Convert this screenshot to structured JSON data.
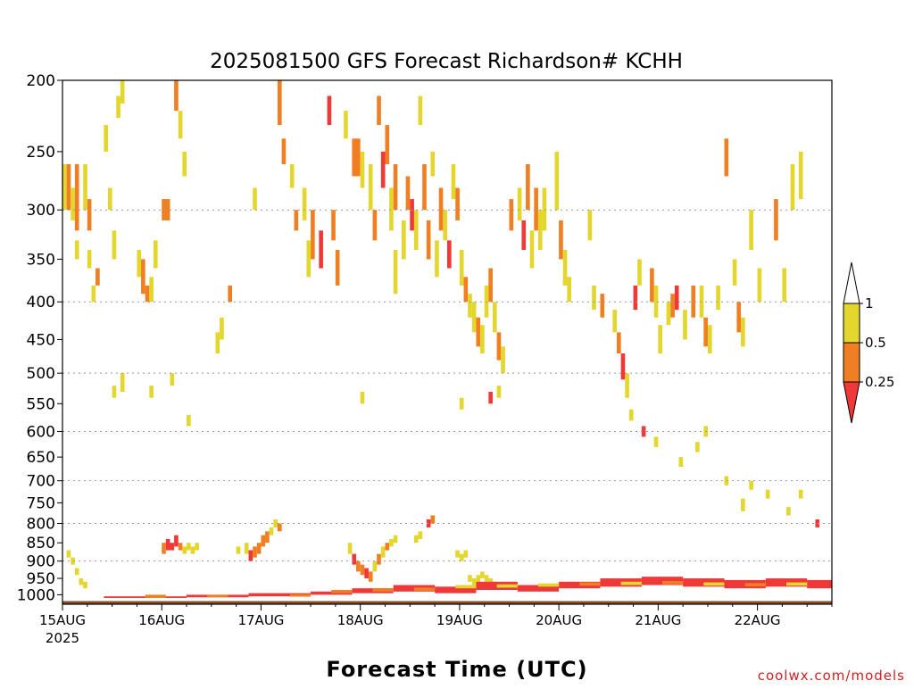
{
  "chart_data": {
    "type": "heatmap",
    "title": "2025081500 GFS Forecast Richardson# KCHH",
    "xlabel": "Forecast Time (UTC)",
    "ylabel": "",
    "credit": "coolwx.com/models",
    "x_ticks": [
      {
        "label": "15AUG",
        "sublabel": "2025",
        "hour": 0
      },
      {
        "label": "16AUG",
        "hour": 24
      },
      {
        "label": "17AUG",
        "hour": 48
      },
      {
        "label": "18AUG",
        "hour": 72
      },
      {
        "label": "19AUG",
        "hour": 96
      },
      {
        "label": "20AUG",
        "hour": 120
      },
      {
        "label": "21AUG",
        "hour": 144
      },
      {
        "label": "22AUG",
        "hour": 168
      }
    ],
    "xlim_hours": [
      0,
      186
    ],
    "y_ticks": [
      200,
      250,
      300,
      350,
      400,
      450,
      500,
      550,
      600,
      650,
      700,
      750,
      800,
      850,
      900,
      950,
      1000
    ],
    "y_gridlines": [
      300,
      400,
      500,
      600,
      700,
      800,
      900
    ],
    "ylim_hpa": [
      200,
      1030
    ],
    "y_scale": "log-pressure (inverted)",
    "grid": "dotted horizontal",
    "surface_pressure_hpa": 1020,
    "legend": {
      "placement": "right",
      "labels": [
        "1",
        "0.5",
        "0.25"
      ],
      "bins": [
        {
          "range": "> 1",
          "color": "#ffffff"
        },
        {
          "range": "0.5 - 1",
          "color": "#e3d62d"
        },
        {
          "range": "0.25 - 0.5",
          "color": "#ef7f22"
        },
        {
          "range": "< 0.25",
          "color": "#f03838"
        }
      ]
    },
    "colors": {
      "ri_0.5_1": "#e3d62d",
      "ri_0.25_0.5": "#ef7f22",
      "ri_lt_0.25": "#f03838",
      "ground": "#8b4a26"
    },
    "cells_note": "each cell: [hour_start, hour_end, p_top_hPa, p_bottom_hPa, bin] with bin 1 = 0.5-1, 2 = 0.25-0.5, 3 = <0.25",
    "cells": [
      [
        0,
        1,
        260,
        300,
        1
      ],
      [
        1,
        2,
        260,
        300,
        2
      ],
      [
        2,
        3,
        280,
        310,
        1
      ],
      [
        3,
        4,
        260,
        320,
        2
      ],
      [
        3,
        4,
        330,
        350,
        1
      ],
      [
        5,
        6,
        260,
        300,
        1
      ],
      [
        6,
        7,
        290,
        320,
        2
      ],
      [
        6,
        7,
        340,
        360,
        1
      ],
      [
        7,
        8,
        380,
        400,
        1
      ],
      [
        8,
        9,
        360,
        380,
        2
      ],
      [
        10,
        11,
        230,
        250,
        1
      ],
      [
        11,
        12,
        280,
        300,
        1
      ],
      [
        12,
        13,
        320,
        350,
        1
      ],
      [
        13,
        14,
        210,
        225,
        1
      ],
      [
        14,
        15,
        200,
        215,
        1
      ],
      [
        18,
        19,
        340,
        370,
        1
      ],
      [
        19,
        20,
        350,
        390,
        2
      ],
      [
        20,
        21,
        380,
        400,
        2
      ],
      [
        21,
        22,
        370,
        400,
        1
      ],
      [
        22,
        23,
        330,
        360,
        1
      ],
      [
        24,
        26,
        290,
        310,
        2
      ],
      [
        27,
        28,
        200,
        220,
        2
      ],
      [
        28,
        29,
        220,
        240,
        1
      ],
      [
        29,
        30,
        250,
        270,
        1
      ],
      [
        37,
        38,
        440,
        470,
        1
      ],
      [
        38,
        39,
        420,
        450,
        1
      ],
      [
        40,
        41,
        380,
        400,
        2
      ],
      [
        46,
        47,
        280,
        300,
        1
      ],
      [
        52,
        53,
        200,
        230,
        2
      ],
      [
        53,
        54,
        240,
        260,
        2
      ],
      [
        55,
        56,
        260,
        280,
        1
      ],
      [
        56,
        57,
        300,
        320,
        2
      ],
      [
        58,
        59,
        280,
        310,
        1
      ],
      [
        59,
        60,
        330,
        370,
        1
      ],
      [
        60,
        61,
        300,
        350,
        2
      ],
      [
        62,
        63,
        320,
        360,
        3
      ],
      [
        64,
        65,
        210,
        230,
        3
      ],
      [
        65,
        66,
        300,
        330,
        2
      ],
      [
        66,
        67,
        340,
        380,
        2
      ],
      [
        68,
        69,
        220,
        240,
        1
      ],
      [
        70,
        72,
        240,
        270,
        2
      ],
      [
        72,
        73,
        250,
        280,
        1
      ],
      [
        74,
        75,
        260,
        300,
        1
      ],
      [
        75,
        76,
        300,
        330,
        2
      ],
      [
        76,
        77,
        210,
        230,
        2
      ],
      [
        77,
        78,
        250,
        280,
        3
      ],
      [
        78,
        79,
        230,
        260,
        2
      ],
      [
        79,
        80,
        280,
        320,
        1
      ],
      [
        80,
        81,
        260,
        300,
        2
      ],
      [
        80,
        81,
        340,
        390,
        1
      ],
      [
        82,
        83,
        310,
        350,
        1
      ],
      [
        83,
        84,
        270,
        300,
        2
      ],
      [
        84,
        85,
        290,
        320,
        3
      ],
      [
        85,
        86,
        300,
        340,
        1
      ],
      [
        86,
        87,
        210,
        230,
        1
      ],
      [
        87,
        88,
        260,
        300,
        2
      ],
      [
        88,
        89,
        310,
        350,
        2
      ],
      [
        89,
        90,
        250,
        270,
        1
      ],
      [
        90,
        91,
        330,
        370,
        1
      ],
      [
        91,
        92,
        280,
        320,
        2
      ],
      [
        92,
        93,
        300,
        330,
        1
      ],
      [
        93,
        94,
        330,
        360,
        3
      ],
      [
        94,
        95,
        260,
        290,
        1
      ],
      [
        95,
        96,
        280,
        310,
        2
      ],
      [
        96,
        97,
        340,
        380,
        1
      ],
      [
        97,
        98,
        370,
        400,
        2
      ],
      [
        98,
        99,
        390,
        420,
        1
      ],
      [
        99,
        100,
        400,
        440,
        1
      ],
      [
        100,
        101,
        420,
        460,
        2
      ],
      [
        101,
        102,
        430,
        470,
        1
      ],
      [
        102,
        103,
        380,
        420,
        1
      ],
      [
        103,
        104,
        360,
        400,
        2
      ],
      [
        104,
        105,
        400,
        440,
        1
      ],
      [
        105,
        106,
        440,
        480,
        2
      ],
      [
        106,
        107,
        460,
        500,
        1
      ],
      [
        108,
        109,
        290,
        320,
        2
      ],
      [
        110,
        111,
        280,
        310,
        1
      ],
      [
        111,
        112,
        310,
        340,
        3
      ],
      [
        112,
        113,
        260,
        300,
        2
      ],
      [
        113,
        114,
        320,
        360,
        1
      ],
      [
        114,
        115,
        280,
        320,
        2
      ],
      [
        115,
        116,
        300,
        340,
        1
      ],
      [
        116,
        117,
        280,
        320,
        1
      ],
      [
        119,
        120,
        250,
        300,
        1
      ],
      [
        120,
        121,
        310,
        350,
        2
      ],
      [
        121,
        122,
        340,
        380,
        1
      ],
      [
        122,
        123,
        370,
        400,
        1
      ],
      [
        127,
        128,
        300,
        330,
        1
      ],
      [
        128,
        129,
        380,
        410,
        1
      ],
      [
        130,
        131,
        390,
        420,
        2
      ],
      [
        133,
        134,
        410,
        440,
        1
      ],
      [
        134,
        135,
        440,
        470,
        2
      ],
      [
        135,
        136,
        470,
        510,
        3
      ],
      [
        136,
        137,
        500,
        540,
        1
      ],
      [
        138,
        139,
        380,
        410,
        3
      ],
      [
        139,
        140,
        350,
        380,
        1
      ],
      [
        142,
        143,
        360,
        400,
        2
      ],
      [
        143,
        144,
        380,
        420,
        1
      ],
      [
        144,
        145,
        430,
        470,
        1
      ],
      [
        146,
        147,
        400,
        430,
        1
      ],
      [
        147,
        148,
        390,
        420,
        2
      ],
      [
        148,
        149,
        380,
        410,
        3
      ],
      [
        150,
        151,
        410,
        450,
        1
      ],
      [
        152,
        153,
        380,
        420,
        2
      ],
      [
        154,
        155,
        380,
        420,
        1
      ],
      [
        155,
        156,
        420,
        460,
        2
      ],
      [
        156,
        157,
        430,
        470,
        1
      ],
      [
        158,
        159,
        380,
        410,
        1
      ],
      [
        160,
        161,
        240,
        270,
        2
      ],
      [
        162,
        163,
        350,
        380,
        1
      ],
      [
        163,
        164,
        400,
        440,
        2
      ],
      [
        164,
        165,
        420,
        460,
        1
      ],
      [
        166,
        167,
        300,
        340,
        1
      ],
      [
        168,
        169,
        360,
        400,
        1
      ],
      [
        172,
        173,
        290,
        330,
        2
      ],
      [
        174,
        175,
        360,
        400,
        1
      ],
      [
        176,
        177,
        260,
        300,
        1
      ],
      [
        178,
        179,
        250,
        290,
        1
      ],
      [
        12,
        13,
        520,
        540,
        1
      ],
      [
        14,
        15,
        500,
        530,
        1
      ],
      [
        21,
        22,
        520,
        540,
        1
      ],
      [
        26,
        27,
        500,
        520,
        1
      ],
      [
        30,
        31,
        570,
        590,
        1
      ],
      [
        72,
        73,
        530,
        550,
        1
      ],
      [
        96,
        97,
        540,
        560,
        1
      ],
      [
        103,
        104,
        530,
        550,
        3
      ],
      [
        105,
        106,
        520,
        540,
        1
      ],
      [
        137,
        138,
        560,
        580,
        1
      ],
      [
        140,
        141,
        590,
        610,
        3
      ],
      [
        143,
        144,
        610,
        630,
        1
      ],
      [
        149,
        150,
        650,
        670,
        1
      ],
      [
        153,
        154,
        620,
        640,
        1
      ],
      [
        155,
        156,
        590,
        610,
        1
      ],
      [
        160,
        161,
        690,
        710,
        1
      ],
      [
        164,
        165,
        740,
        770,
        1
      ],
      [
        166,
        167,
        700,
        720,
        1
      ],
      [
        170,
        171,
        720,
        740,
        1
      ],
      [
        175,
        176,
        760,
        780,
        1
      ],
      [
        178,
        179,
        720,
        740,
        1
      ],
      [
        182,
        183,
        790,
        810,
        3
      ],
      [
        24,
        25,
        850,
        880,
        2
      ],
      [
        25,
        26,
        840,
        870,
        3
      ],
      [
        26,
        27,
        850,
        870,
        3
      ],
      [
        27,
        28,
        830,
        860,
        3
      ],
      [
        28,
        29,
        850,
        870,
        2
      ],
      [
        29,
        30,
        860,
        880,
        1
      ],
      [
        30,
        31,
        850,
        870,
        1
      ],
      [
        31,
        32,
        860,
        880,
        1
      ],
      [
        32,
        33,
        850,
        870,
        1
      ],
      [
        42,
        43,
        860,
        880,
        1
      ],
      [
        44,
        45,
        850,
        880,
        1
      ],
      [
        45,
        46,
        870,
        900,
        3
      ],
      [
        46,
        47,
        860,
        890,
        2
      ],
      [
        47,
        48,
        850,
        880,
        2
      ],
      [
        48,
        49,
        830,
        860,
        2
      ],
      [
        49,
        50,
        820,
        850,
        2
      ],
      [
        50,
        51,
        810,
        830,
        1
      ],
      [
        51,
        52,
        790,
        810,
        1
      ],
      [
        52,
        53,
        800,
        820,
        2
      ],
      [
        69,
        70,
        850,
        880,
        1
      ],
      [
        70,
        71,
        880,
        910,
        3
      ],
      [
        71,
        72,
        900,
        930,
        2
      ],
      [
        72,
        73,
        910,
        940,
        2
      ],
      [
        73,
        74,
        920,
        950,
        3
      ],
      [
        74,
        75,
        930,
        960,
        2
      ],
      [
        75,
        76,
        900,
        930,
        1
      ],
      [
        76,
        77,
        880,
        910,
        2
      ],
      [
        77,
        78,
        860,
        890,
        1
      ],
      [
        78,
        79,
        850,
        870,
        2
      ],
      [
        79,
        80,
        840,
        860,
        1
      ],
      [
        80,
        81,
        830,
        850,
        1
      ],
      [
        85,
        86,
        830,
        850,
        1
      ],
      [
        86,
        87,
        820,
        840,
        1
      ],
      [
        88,
        89,
        790,
        810,
        3
      ],
      [
        89,
        90,
        780,
        800,
        2
      ],
      [
        95,
        96,
        870,
        890,
        1
      ],
      [
        96,
        97,
        880,
        900,
        1
      ],
      [
        97,
        98,
        870,
        890,
        1
      ],
      [
        98,
        99,
        940,
        960,
        1
      ],
      [
        99,
        100,
        950,
        970,
        1
      ],
      [
        100,
        101,
        940,
        960,
        1
      ],
      [
        101,
        102,
        930,
        950,
        1
      ],
      [
        102,
        103,
        940,
        960,
        1
      ],
      [
        103,
        104,
        950,
        970,
        1
      ],
      [
        104,
        105,
        960,
        980,
        1
      ],
      [
        1,
        2,
        870,
        890,
        1
      ],
      [
        2,
        3,
        890,
        910,
        1
      ],
      [
        3,
        4,
        920,
        940,
        1
      ],
      [
        4,
        5,
        950,
        970,
        1
      ],
      [
        5,
        6,
        960,
        980,
        1
      ],
      [
        60,
        70,
        990,
        1000,
        3
      ],
      [
        70,
        80,
        980,
        995,
        3
      ],
      [
        80,
        90,
        970,
        990,
        3
      ],
      [
        90,
        100,
        975,
        995,
        3
      ],
      [
        100,
        110,
        960,
        985,
        3
      ],
      [
        110,
        120,
        970,
        990,
        3
      ],
      [
        120,
        130,
        960,
        980,
        3
      ],
      [
        130,
        140,
        950,
        975,
        3
      ],
      [
        140,
        150,
        945,
        970,
        3
      ],
      [
        150,
        160,
        950,
        975,
        3
      ],
      [
        160,
        170,
        955,
        980,
        3
      ],
      [
        170,
        180,
        950,
        975,
        3
      ],
      [
        180,
        186,
        955,
        980,
        3
      ],
      [
        10,
        30,
        1005,
        1010,
        3
      ],
      [
        30,
        45,
        1000,
        1008,
        3
      ],
      [
        45,
        60,
        995,
        1005,
        3
      ],
      [
        20,
        25,
        1000,
        1010,
        2
      ],
      [
        35,
        40,
        1000,
        1008,
        2
      ],
      [
        55,
        60,
        998,
        1006,
        2
      ],
      [
        65,
        70,
        985,
        995,
        2
      ],
      [
        75,
        80,
        980,
        990,
        2
      ],
      [
        85,
        90,
        978,
        988,
        2
      ],
      [
        95,
        100,
        970,
        980,
        1
      ],
      [
        105,
        110,
        968,
        978,
        1
      ],
      [
        115,
        120,
        965,
        975,
        1
      ],
      [
        125,
        130,
        962,
        972,
        2
      ],
      [
        135,
        140,
        960,
        970,
        1
      ],
      [
        145,
        150,
        958,
        968,
        2
      ],
      [
        155,
        160,
        962,
        972,
        1
      ],
      [
        165,
        170,
        964,
        974,
        2
      ],
      [
        175,
        180,
        962,
        972,
        1
      ]
    ]
  }
}
